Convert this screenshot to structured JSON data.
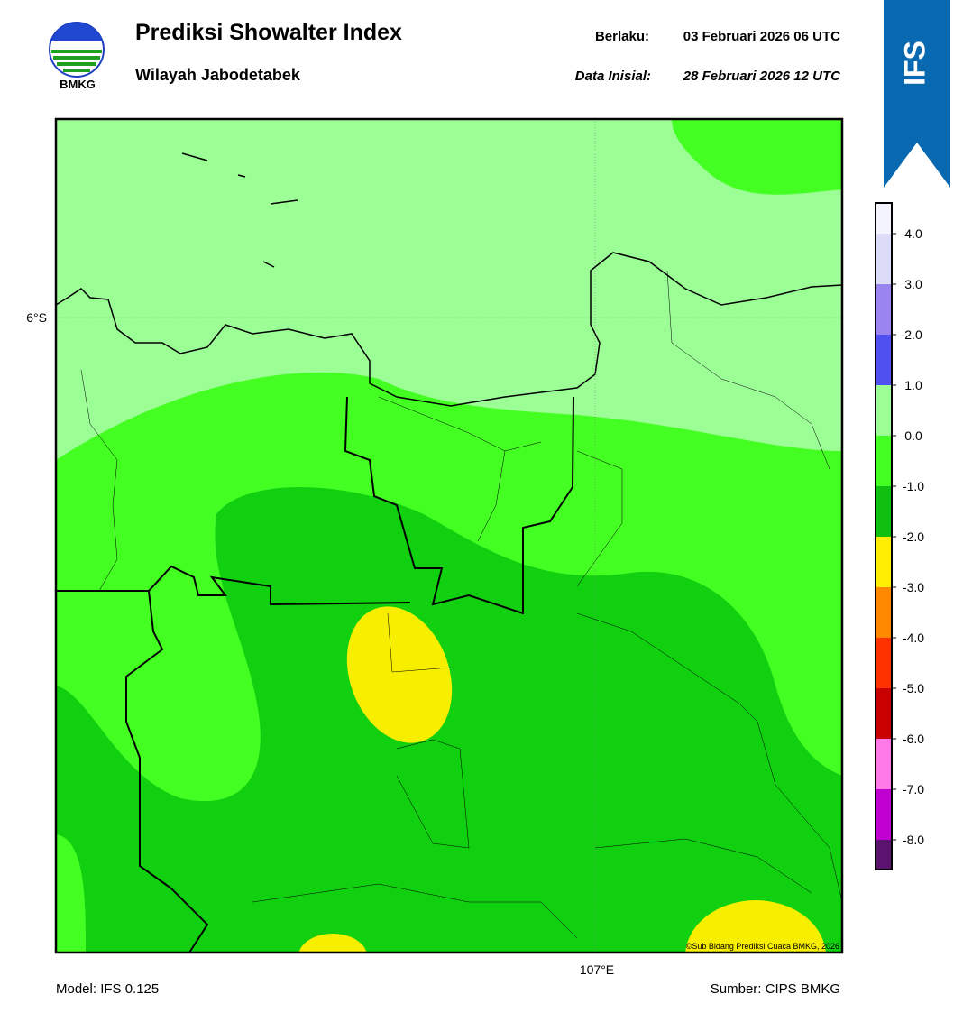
{
  "header": {
    "title": "Prediksi Showalter Index",
    "subtitle": "Wilayah Jabodetabek",
    "logo_text": "BMKG",
    "valid_label": "Berlaku:",
    "valid_time": "03 Februari 2026 06 UTC",
    "init_label": "Data Inisial:",
    "init_time": "28 Februari 2026 12 UTC",
    "badge": "IFS"
  },
  "map": {
    "lat_label": "6°S",
    "lon_label": "107°E",
    "credit": "©Sub Bidang Prediksi Cuaca BMKG, 2026"
  },
  "colorbar": {
    "colors": [
      "#f4f4ff",
      "#dcdcf8",
      "#9a84f0",
      "#5050f0",
      "#9cff96",
      "#44ff22",
      "#10c010",
      "#ffee00",
      "#ff8800",
      "#ff3300",
      "#c80000",
      "#ff7ae8",
      "#c000d0",
      "#5a1470"
    ],
    "labels": [
      "4.0",
      "3.0",
      "2.0",
      "1.0",
      "0.0",
      "-1.0",
      "-2.0",
      "-3.0",
      "-4.0",
      "-5.0",
      "-6.0",
      "-7.0",
      "-8.0"
    ]
  },
  "footer": {
    "model": "Model: IFS 0.125",
    "source": "Sumber: CIPS BMKG"
  }
}
